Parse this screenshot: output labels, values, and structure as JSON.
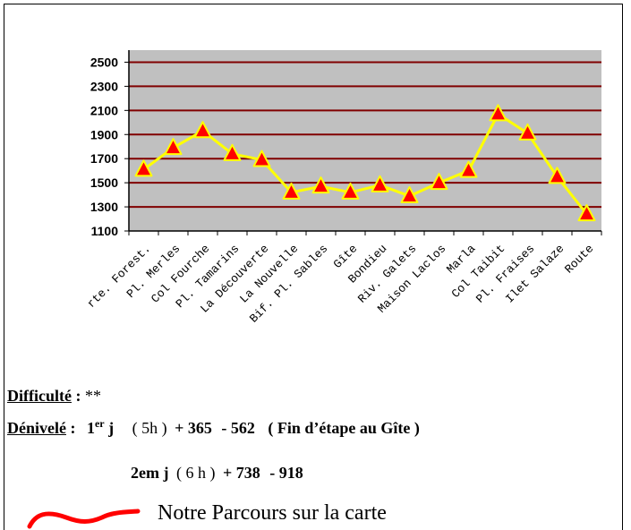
{
  "chart_data": {
    "type": "line",
    "categories": [
      "rte. Forest.",
      "Pl. Merles",
      "Col Fourche",
      "Pl. Tamarins",
      "La Découverte",
      "La Nouvelle",
      "Bif. Pl. Sables",
      "Gîte",
      "Bondieu",
      "Riv. Galets",
      "Maison Laclos",
      "Marla",
      "Col Taibit",
      "Pl. Fraises",
      "Ilet Salaze",
      "Route"
    ],
    "values": [
      1610,
      1790,
      1930,
      1740,
      1690,
      1420,
      1470,
      1420,
      1480,
      1390,
      1500,
      1600,
      2070,
      1910,
      1550,
      1240
    ],
    "yticks": [
      1100,
      1300,
      1500,
      1700,
      1900,
      2100,
      2300,
      2500
    ],
    "ylim": [
      1100,
      2600
    ],
    "grid": true,
    "colors": {
      "plot_bg": "#c0c0c0",
      "grid": "#800000",
      "line": "#ffff00",
      "marker": "#ff0000"
    }
  },
  "info": {
    "difficulty_label": "Difficulté",
    "difficulty_sep": " :",
    "difficulty_value": "**",
    "elevation_label": "Dénivelé",
    "elevation_sep": " :",
    "day1_label": "1",
    "day1_sup": "er",
    "day1_j": " j",
    "day1_duration": "( 5h )",
    "day1_up": "+ 365",
    "day1_down": "- 562",
    "day1_note": "( Fin d’étape au Gîte )",
    "day2_label": "2em j",
    "day2_duration": "( 6 h )",
    "day2_up": "+ 738",
    "day2_down": "- 918",
    "map_text": "Notre Parcours sur  la carte"
  }
}
